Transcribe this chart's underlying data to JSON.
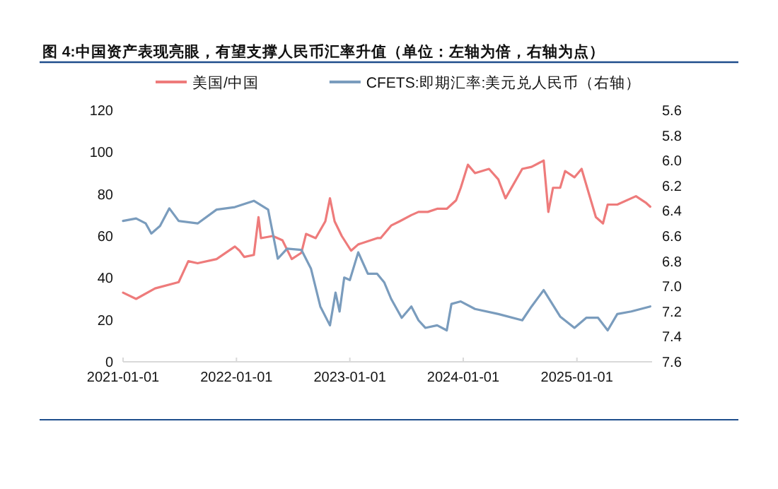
{
  "chart_data": {
    "type": "line",
    "title": "图 4:中国资产表现亮眼，有望支撑人民币汇率升值（单位：左轴为倍，右轴为点）",
    "xlim": [
      "2021-01-01",
      "2025-08-31"
    ],
    "xticks": [
      "2021-01-01",
      "2022-01-01",
      "2023-01-01",
      "2024-01-01",
      "2025-01-01"
    ],
    "ylim": [
      0,
      120
    ],
    "yticks": [
      0,
      20,
      40,
      60,
      80,
      100,
      120
    ],
    "y2lim": [
      7.6,
      5.6
    ],
    "y2ticks": [
      {
        "value": 5.6,
        "label": "5.6"
      },
      {
        "value": 5.8,
        "label": "5.8"
      },
      {
        "value": 6,
        "label": "6.0"
      },
      {
        "value": 6.2,
        "label": "6.2"
      },
      {
        "value": 6.4,
        "label": "6.4"
      },
      {
        "value": 6.6,
        "label": "6.6"
      },
      {
        "value": 6.8,
        "label": "6.8"
      },
      {
        "value": 7,
        "label": "7.0"
      },
      {
        "value": 7.2,
        "label": "7.2"
      },
      {
        "value": 7.4,
        "label": "7.4"
      },
      {
        "value": 7.6,
        "label": "7.6"
      }
    ],
    "grid": false,
    "legend": "top",
    "marker": "none",
    "line_style": "solid",
    "series": [
      {
        "name": "美国/中国",
        "color": "#ee7b7b",
        "x": [
          "2021-01-01",
          "2021-02-12",
          "2021-04-14",
          "2021-06-29",
          "2021-07-30",
          "2021-08-29",
          "2021-10-29",
          "2021-12-27",
          "2022-01-11",
          "2022-01-26",
          "2022-02-26",
          "2022-03-13",
          "2022-03-21",
          "2022-04-28",
          "2022-05-29",
          "2022-06-28",
          "2022-07-29",
          "2022-08-13",
          "2022-09-13",
          "2022-10-14",
          "2022-10-29",
          "2022-11-13",
          "2022-12-06",
          "2023-01-05",
          "2023-01-28",
          "2023-03-30",
          "2023-04-10",
          "2023-05-14",
          "2023-06-10",
          "2023-07-18",
          "2023-08-10",
          "2023-09-09",
          "2023-10-09",
          "2023-11-09",
          "2023-12-09",
          "2023-12-24",
          "2024-01-16",
          "2024-02-08",
          "2024-03-24",
          "2024-04-23",
          "2024-05-16",
          "2024-07-09",
          "2024-08-08",
          "2024-09-16",
          "2024-10-01",
          "2024-10-16",
          "2024-11-08",
          "2024-11-24",
          "2024-12-24",
          "2025-01-16",
          "2025-02-08",
          "2025-03-03",
          "2025-03-26",
          "2025-04-10",
          "2025-05-11",
          "2025-07-10",
          "2025-08-10",
          "2025-08-25"
        ],
        "values": [
          33,
          30,
          35,
          38,
          48,
          47,
          49,
          55,
          53,
          50,
          51,
          69,
          59,
          60,
          58,
          49,
          52,
          61,
          59,
          67,
          78,
          67,
          60,
          53,
          56,
          59,
          59,
          65,
          67,
          70,
          71.5,
          71.5,
          73,
          73,
          77,
          83,
          94,
          90,
          92,
          87,
          78,
          92,
          93,
          96,
          71.5,
          83,
          83,
          91,
          88,
          92,
          80.5,
          69,
          66,
          75,
          75,
          79,
          76,
          74
        ]
      },
      {
        "name": "CFETS:即期汇率:美元兑人民币（右轴）",
        "color": "#7a9cbd",
        "axis": "y2",
        "x": [
          "2021-01-01",
          "2021-02-12",
          "2021-03-15",
          "2021-04-02",
          "2021-04-30",
          "2021-05-30",
          "2021-06-29",
          "2021-08-29",
          "2021-10-29",
          "2021-12-27",
          "2022-02-26",
          "2022-04-13",
          "2022-05-14",
          "2022-06-13",
          "2022-07-29",
          "2022-08-29",
          "2022-09-28",
          "2022-10-29",
          "2022-11-16",
          "2022-11-29",
          "2022-12-14",
          "2023-01-01",
          "2023-01-28",
          "2023-02-28",
          "2023-03-30",
          "2023-04-22",
          "2023-05-14",
          "2023-06-17",
          "2023-07-18",
          "2023-08-10",
          "2023-09-01",
          "2023-10-09",
          "2023-11-09",
          "2023-11-24",
          "2023-12-24",
          "2024-02-08",
          "2024-04-23",
          "2024-07-09",
          "2024-08-08",
          "2024-09-16",
          "2024-11-08",
          "2024-12-24",
          "2025-01-31",
          "2025-03-10",
          "2025-04-10",
          "2025-05-11",
          "2025-06-25",
          "2025-08-25"
        ],
        "values": [
          6.48,
          6.46,
          6.5,
          6.58,
          6.52,
          6.38,
          6.48,
          6.5,
          6.39,
          6.37,
          6.32,
          6.39,
          6.78,
          6.7,
          6.71,
          6.86,
          7.16,
          7.31,
          7.05,
          7.2,
          6.93,
          6.95,
          6.73,
          6.9,
          6.9,
          6.97,
          7.1,
          7.25,
          7.16,
          7.27,
          7.33,
          7.31,
          7.35,
          7.14,
          7.12,
          7.18,
          7.22,
          7.27,
          7.16,
          7.03,
          7.24,
          7.33,
          7.25,
          7.25,
          7.35,
          7.22,
          7.2,
          7.16
        ]
      }
    ]
  }
}
